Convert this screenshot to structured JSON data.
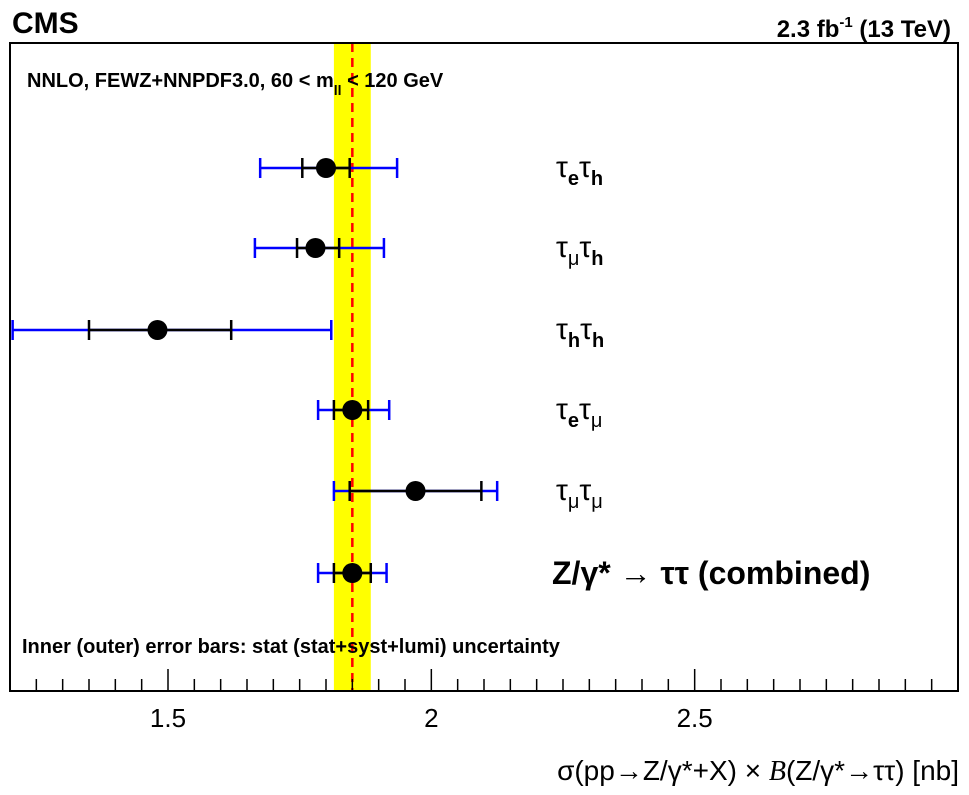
{
  "header": {
    "experiment": "CMS",
    "lumi_value": "2.3 fb",
    "lumi_exp": "-1",
    "energy": "(13 TeV)"
  },
  "theory_label": {
    "main": "NNLO, FEWZ+NNPDF3.0, 60 < m",
    "sub": "ll",
    "tail": " < 120 GeV"
  },
  "footnote": "Inner (outer) error bars: stat (stat+syst+lumi) uncertainty",
  "xaxis": {
    "label_a": "σ(pp→Z/γ*+X) × ",
    "label_b": "B",
    "label_c": "(Z/γ*→ττ) [nb]"
  },
  "colors": {
    "band": "#ffff00",
    "prediction_line": "#ff0000",
    "syst_bar": "#0000ff",
    "stat_bar": "#000000",
    "marker": "#000000"
  },
  "chart_data": {
    "type": "scatter",
    "title": "",
    "xlabel": "σ(pp→Z/γ*+X) × B(Z/γ*→ττ) [nb]",
    "xlim": [
      1.2,
      3.0
    ],
    "xticks": [
      {
        "value": 1.5,
        "label": "1.5"
      },
      {
        "value": 2.0,
        "label": "2"
      },
      {
        "value": 2.5,
        "label": "2.5"
      }
    ],
    "prediction": {
      "value": 1.85,
      "band_low": 1.815,
      "band_high": 1.885
    },
    "series": [
      {
        "channel": "τeτh",
        "base": "τ",
        "sub": "e",
        "base2": "τ",
        "sub2": "h",
        "sub_bold": [
          true,
          true
        ],
        "value": 1.8,
        "stat_low": 1.755,
        "stat_high": 1.845,
        "total_low": 1.675,
        "total_high": 1.935
      },
      {
        "channel": "τμτh",
        "base": "τ",
        "sub": "μ",
        "base2": "τ",
        "sub2": "h",
        "sub_bold": [
          false,
          true
        ],
        "value": 1.78,
        "stat_low": 1.745,
        "stat_high": 1.825,
        "total_low": 1.665,
        "total_high": 1.91
      },
      {
        "channel": "τhτh",
        "base": "τ",
        "sub": "h",
        "base2": "τ",
        "sub2": "h",
        "sub_bold": [
          true,
          true
        ],
        "value": 1.48,
        "stat_low": 1.35,
        "stat_high": 1.62,
        "total_low": 1.205,
        "total_high": 1.81
      },
      {
        "channel": "τeτμ",
        "base": "τ",
        "sub": "e",
        "base2": "τ",
        "sub2": "μ",
        "sub_bold": [
          true,
          false
        ],
        "value": 1.85,
        "stat_low": 1.815,
        "stat_high": 1.88,
        "total_low": 1.785,
        "total_high": 1.92
      },
      {
        "channel": "τμτμ",
        "base": "τ",
        "sub": "μ",
        "base2": "τ",
        "sub2": "μ",
        "sub_bold": [
          false,
          false
        ],
        "value": 1.97,
        "stat_low": 1.845,
        "stat_high": 2.095,
        "total_low": 1.815,
        "total_high": 2.125
      },
      {
        "channel": "Z/γ* → ττ (combined)",
        "combined": true,
        "value": 1.85,
        "stat_low": 1.815,
        "stat_high": 1.885,
        "total_low": 1.785,
        "total_high": 1.915
      }
    ]
  }
}
